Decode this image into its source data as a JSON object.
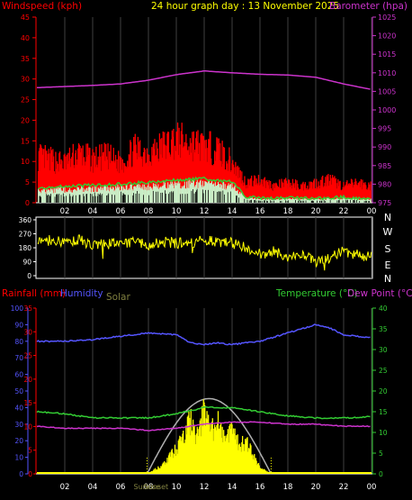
{
  "title": "24 hour graph day : 13 November 2025",
  "colors": {
    "wind": "#ff0000",
    "gust_band": "#ff2020",
    "avg_wind": "#33cc33",
    "wind_base": "#c8f0c8",
    "baro": "#cc33cc",
    "dir": "#ffff00",
    "rain": "#ff0000",
    "humidity": "#5555ff",
    "solar": "#808040",
    "solar_fill": "#ffff00",
    "solar_max": "#b0b0b0",
    "temp": "#33cc33",
    "dew": "#cc33cc",
    "axis": "#ffffff",
    "grid": "#404040",
    "hour_label": "#ffffff"
  },
  "chart_data": [
    {
      "type": "line",
      "name": "wind-baro",
      "left_label": "Windspeed (kph)",
      "right_label": "Barometer (hpa)",
      "left_ticks": [
        "45",
        "40",
        "35",
        "30",
        "25",
        "20",
        "15",
        "10",
        "5",
        "0"
      ],
      "right_ticks": [
        "1025",
        "1020",
        "1015",
        "1010",
        "1005",
        "1000",
        "995",
        "990",
        "985",
        "980",
        "975"
      ],
      "ylim_left": [
        0,
        45
      ],
      "ylim_right": [
        975,
        1025
      ],
      "x_ticks": [
        "02",
        "04",
        "06",
        "08",
        "10",
        "12",
        "14",
        "16",
        "18",
        "20",
        "22",
        "00"
      ],
      "barometer": {
        "x": [
          0,
          2,
          4,
          6,
          8,
          10,
          12,
          14,
          16,
          18,
          20,
          22,
          24
        ],
        "y": [
          1006.0,
          1006.3,
          1006.6,
          1007.0,
          1008.0,
          1009.5,
          1010.5,
          1010.0,
          1009.6,
          1009.4,
          1008.8,
          1007.0,
          1005.5
        ]
      },
      "wind_peak": {
        "x": [
          0,
          1,
          2,
          3,
          4,
          5,
          6,
          7,
          8,
          9,
          10,
          11,
          12,
          13,
          14,
          15,
          16,
          17,
          18,
          19,
          20,
          21,
          22,
          23,
          24
        ],
        "y": [
          14,
          13,
          12,
          15,
          13,
          14,
          12,
          16,
          15,
          17,
          19,
          18,
          17,
          16,
          12,
          6,
          7,
          5,
          6,
          5,
          6,
          7,
          5,
          6,
          5
        ]
      },
      "wind_avg": {
        "x": [
          0,
          2,
          4,
          6,
          8,
          10,
          12,
          14,
          15,
          16,
          18,
          20,
          22,
          24
        ],
        "y": [
          3.5,
          4.0,
          4.2,
          4.5,
          5.0,
          5.5,
          5.8,
          5.0,
          1.5,
          1.0,
          1.2,
          1.0,
          1.3,
          1.0
        ]
      }
    },
    {
      "type": "line",
      "name": "wind-direction",
      "left_ticks": [
        "360",
        "270",
        "180",
        "90",
        "0"
      ],
      "right_letters": [
        "N",
        "W",
        "S",
        "E",
        "N"
      ],
      "ylim": [
        0,
        360
      ],
      "direction": {
        "x": [
          0,
          1,
          2,
          3,
          4,
          5,
          6,
          7,
          8,
          9,
          10,
          11,
          12,
          13,
          14,
          15,
          16,
          17,
          18,
          19,
          20,
          21,
          22,
          23,
          24
        ],
        "y": [
          210,
          225,
          215,
          230,
          200,
          205,
          210,
          215,
          200,
          220,
          210,
          215,
          225,
          220,
          215,
          180,
          140,
          155,
          120,
          130,
          100,
          110,
          160,
          135,
          120
        ]
      }
    },
    {
      "type": "line",
      "name": "temp-hum-rain-solar",
      "left_labels": [
        "Rainfall (mm)",
        "Humidity",
        "Solar"
      ],
      "right_labels": [
        "Temperature (°C)",
        "Dew Point (°C)"
      ],
      "hum_ticks": [
        "100",
        "90",
        "80",
        "70",
        "60",
        "50",
        "40",
        "30",
        "20",
        "10",
        "0"
      ],
      "rain_ticks": [
        "35",
        "30",
        "25",
        "20",
        "15",
        "10",
        "5",
        "0"
      ],
      "temp_ticks": [
        "40",
        "35",
        "30",
        "25",
        "20",
        "15",
        "10",
        "5",
        "0"
      ],
      "x_ticks": [
        "02",
        "04",
        "06",
        "08",
        "10",
        "12",
        "14",
        "16",
        "18",
        "20",
        "22",
        "00"
      ],
      "sun_labels": [
        "Sunrise",
        "Sunset"
      ],
      "sunrise_hour": 7.9,
      "sunset_hour": 16.8,
      "humidity": {
        "x": [
          0,
          2,
          4,
          6,
          8,
          10,
          11,
          12,
          13,
          14,
          16,
          18,
          20,
          21,
          22,
          24
        ],
        "y": [
          80,
          80,
          81,
          83,
          85,
          84,
          79,
          78,
          79,
          78,
          80,
          85,
          90,
          88,
          84,
          82
        ]
      },
      "temperature": {
        "x": [
          0,
          2,
          4,
          6,
          8,
          10,
          12,
          14,
          16,
          18,
          20,
          22,
          24
        ],
        "y": [
          15,
          14.5,
          13.5,
          13.5,
          13.5,
          14.5,
          16,
          16,
          15,
          14,
          13.5,
          13.5,
          13.8
        ]
      },
      "dewpoint": {
        "x": [
          0,
          2,
          4,
          6,
          8,
          10,
          12,
          14,
          16,
          18,
          20,
          22,
          24
        ],
        "y": [
          11.5,
          11,
          11,
          11,
          10.5,
          11,
          12,
          12.5,
          12.5,
          12,
          12,
          11.5,
          11.5
        ]
      },
      "solar": {
        "x": [
          8,
          9,
          10,
          11,
          11.5,
          12,
          12.5,
          13,
          13.5,
          14,
          14.5,
          15,
          15.5,
          16,
          16.8
        ],
        "y": [
          5,
          40,
          120,
          260,
          180,
          300,
          210,
          250,
          160,
          230,
          140,
          160,
          90,
          30,
          0
        ]
      },
      "solar_max_ylim": [
        0,
        400
      ],
      "rain_ylim": [
        0,
        35
      ],
      "temp_ylim": [
        0,
        40
      ],
      "hum_ylim": [
        0,
        100
      ]
    }
  ]
}
